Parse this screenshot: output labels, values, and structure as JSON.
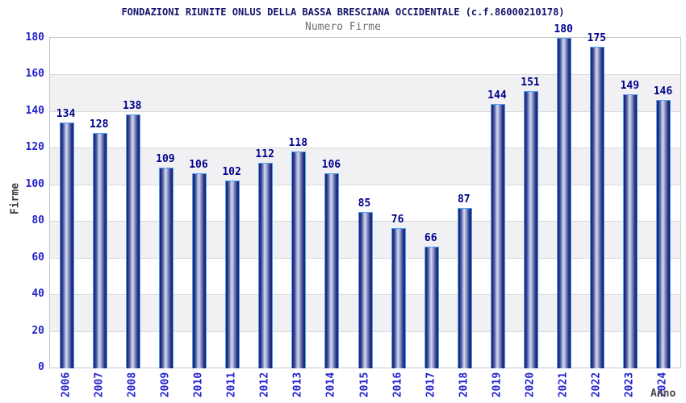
{
  "chart_data": {
    "type": "bar",
    "title": "FONDAZIONI RIUNITE ONLUS DELLA BASSA BRESCIANA OCCIDENTALE (c.f.86000210178)",
    "subtitle": "Numero Firme",
    "xlabel": "Anno",
    "ylabel": "Firme",
    "categories": [
      "2006",
      "2007",
      "2008",
      "2009",
      "2010",
      "2011",
      "2012",
      "2013",
      "2014",
      "2015",
      "2016",
      "2017",
      "2018",
      "2019",
      "2020",
      "2021",
      "2022",
      "2023",
      "2024"
    ],
    "values": [
      134,
      128,
      138,
      109,
      106,
      102,
      112,
      118,
      106,
      85,
      76,
      66,
      87,
      144,
      151,
      180,
      175,
      149,
      146
    ],
    "ylim": [
      0,
      180
    ],
    "ytick_step": 20,
    "grid": true,
    "legend": false,
    "band_fill": "alternating horizontal bands"
  },
  "colors": {
    "title_text": "#14146a",
    "subtitle_text": "#6e6e6e",
    "axis_tick_text": "#2323cc",
    "value_label_text": "#00008b",
    "axis_title_text": "#3c3c3c",
    "bar_outline": "#4da0f5",
    "bar_dark": "#1a2270",
    "bar_light": "#cdd5ee",
    "band_gray": "#f1f1f3",
    "gridline": "#dadada",
    "plot_border": "#c8c8c8",
    "background": "#ffffff"
  }
}
